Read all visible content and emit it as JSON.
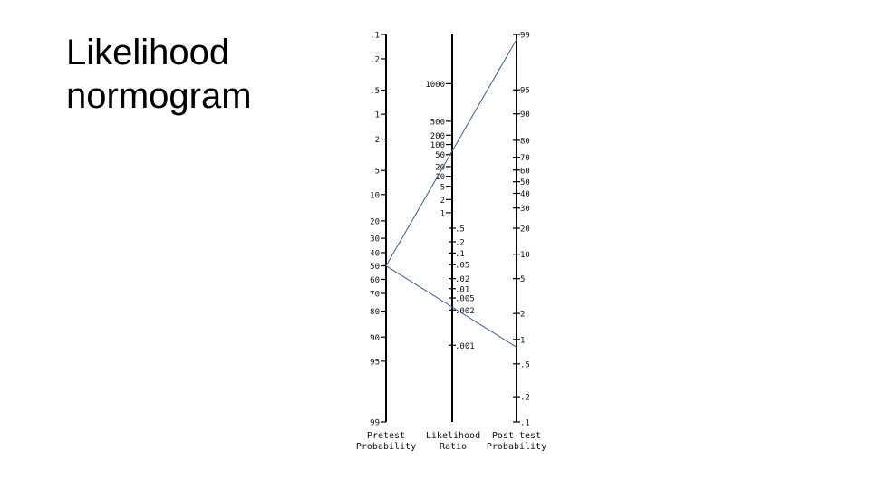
{
  "slide": {
    "title_line1": "Likelihood",
    "title_line2": "normogram"
  },
  "nomogram": {
    "pretest": {
      "label_line1": "Pretest",
      "label_line2": "Probability",
      "ticks": [
        {
          "label": ".1",
          "pos": 0.0
        },
        {
          "label": ".2",
          "pos": 0.063
        },
        {
          "label": ".5",
          "pos": 0.144
        },
        {
          "label": "1",
          "pos": 0.206
        },
        {
          "label": "2",
          "pos": 0.27
        },
        {
          "label": "5",
          "pos": 0.351
        },
        {
          "label": "10",
          "pos": 0.413
        },
        {
          "label": "20",
          "pos": 0.481
        },
        {
          "label": "30",
          "pos": 0.526
        },
        {
          "label": "40",
          "pos": 0.563
        },
        {
          "label": "50",
          "pos": 0.597
        },
        {
          "label": "60",
          "pos": 0.632
        },
        {
          "label": "70",
          "pos": 0.668
        },
        {
          "label": "80",
          "pos": 0.714
        },
        {
          "label": "90",
          "pos": 0.781
        },
        {
          "label": "95",
          "pos": 0.843
        },
        {
          "label": "99",
          "pos": 1.0
        }
      ]
    },
    "likelihood_ratio": {
      "label_line1": "Likelihood",
      "label_line2": "Ratio",
      "ticks": [
        {
          "label": "1000",
          "pos": 0.127,
          "side": "left"
        },
        {
          "label": "500",
          "pos": 0.224,
          "side": "left"
        },
        {
          "label": "200",
          "pos": 0.26,
          "side": "left"
        },
        {
          "label": "100",
          "pos": 0.284,
          "side": "left"
        },
        {
          "label": "50",
          "pos": 0.31,
          "side": "left"
        },
        {
          "label": "20",
          "pos": 0.341,
          "side": "left"
        },
        {
          "label": "10",
          "pos": 0.366,
          "side": "left"
        },
        {
          "label": "5",
          "pos": 0.392,
          "side": "left"
        },
        {
          "label": "2",
          "pos": 0.426,
          "side": "left"
        },
        {
          "label": "1",
          "pos": 0.46,
          "side": "left"
        },
        {
          "label": ".5",
          "pos": 0.5,
          "side": "right"
        },
        {
          "label": ".2",
          "pos": 0.535,
          "side": "right"
        },
        {
          "label": ".1",
          "pos": 0.564,
          "side": "right"
        },
        {
          "label": ".05",
          "pos": 0.594,
          "side": "right"
        },
        {
          "label": ".02",
          "pos": 0.63,
          "side": "right"
        },
        {
          "label": ".01",
          "pos": 0.656,
          "side": "right"
        },
        {
          "label": ".005",
          "pos": 0.68,
          "side": "right"
        },
        {
          "label": ".002",
          "pos": 0.711,
          "side": "right"
        },
        {
          "label": ".001",
          "pos": 0.802,
          "side": "right"
        }
      ]
    },
    "posttest": {
      "label_line1": "Post-test",
      "label_line2": "Probability",
      "ticks": [
        {
          "label": "99",
          "pos": 0.0
        },
        {
          "label": "95",
          "pos": 0.143
        },
        {
          "label": "90",
          "pos": 0.205
        },
        {
          "label": "80",
          "pos": 0.273
        },
        {
          "label": "70",
          "pos": 0.317
        },
        {
          "label": "60",
          "pos": 0.35
        },
        {
          "label": "50",
          "pos": 0.38
        },
        {
          "label": "40",
          "pos": 0.41
        },
        {
          "label": "30",
          "pos": 0.448
        },
        {
          "label": "20",
          "pos": 0.5
        },
        {
          "label": "10",
          "pos": 0.567
        },
        {
          "label": "5",
          "pos": 0.63
        },
        {
          "label": "2",
          "pos": 0.72
        },
        {
          "label": "1",
          "pos": 0.787
        },
        {
          "label": ".5",
          "pos": 0.85
        },
        {
          "label": ".2",
          "pos": 0.935
        },
        {
          "label": ".1",
          "pos": 1.0
        }
      ]
    },
    "result_lines": [
      {
        "from_pretest": 0.597,
        "to_posttest": 0.013
      },
      {
        "from_pretest": 0.597,
        "to_posttest": 0.807
      }
    ],
    "colors": {
      "result_line": "#3d5a8a",
      "axis": "#000000"
    }
  }
}
